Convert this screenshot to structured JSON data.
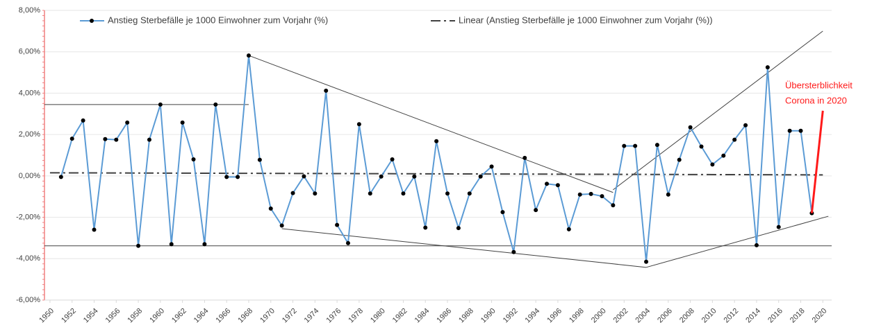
{
  "chart_data": {
    "type": "line",
    "x": [
      1951,
      1952,
      1953,
      1954,
      1955,
      1956,
      1957,
      1958,
      1959,
      1960,
      1961,
      1962,
      1963,
      1964,
      1965,
      1966,
      1967,
      1968,
      1969,
      1970,
      1971,
      1972,
      1973,
      1974,
      1975,
      1976,
      1977,
      1978,
      1979,
      1980,
      1981,
      1982,
      1983,
      1984,
      1985,
      1986,
      1987,
      1988,
      1989,
      1990,
      1991,
      1992,
      1993,
      1994,
      1995,
      1996,
      1997,
      1998,
      1999,
      2000,
      2001,
      2002,
      2003,
      2004,
      2005,
      2006,
      2007,
      2008,
      2009,
      2010,
      2011,
      2012,
      2013,
      2014,
      2015,
      2016,
      2017,
      2018,
      2019
    ],
    "series": [
      {
        "name": "Anstieg Sterbefälle je 1000 Einwohner zum Vorjahr (%)",
        "color": "#5b9bd5",
        "marker": "#000000",
        "values": [
          -0.05,
          1.8,
          2.68,
          -2.6,
          1.78,
          1.75,
          2.58,
          -3.38,
          1.75,
          3.45,
          -3.3,
          2.58,
          0.8,
          -3.3,
          3.45,
          -0.05,
          -0.05,
          5.82,
          0.78,
          -1.58,
          -2.4,
          -0.83,
          -0.02,
          -0.85,
          4.12,
          -2.37,
          -3.25,
          2.5,
          -0.85,
          -0.03,
          0.8,
          -0.85,
          -0.03,
          -2.5,
          1.68,
          -0.85,
          -2.52,
          -0.85,
          -0.03,
          0.45,
          -1.75,
          -3.68,
          0.87,
          -1.65,
          -0.38,
          -0.45,
          -2.58,
          -0.9,
          -0.87,
          -0.98,
          -1.42,
          1.45,
          1.45,
          -4.15,
          1.5,
          -0.9,
          0.78,
          2.35,
          1.42,
          0.55,
          0.98,
          1.75,
          2.45,
          -3.35,
          5.25,
          -2.47,
          2.18,
          2.18,
          -1.8
        ]
      }
    ],
    "trend": {
      "name": "Linear (Anstieg Sterbefälle je 1000 Einwohner zum Vorjahr (%))",
      "color": "#404040",
      "x": [
        1950,
        2020
      ],
      "values": [
        0.15,
        0.05
      ]
    },
    "highlight": {
      "color": "#ff1a1a",
      "x": [
        2019,
        2020
      ],
      "values": [
        -1.8,
        3.15
      ]
    },
    "annotation": [
      "Übersterblichkeit",
      "Corona in 2020"
    ],
    "guide_lines": [
      {
        "x": [
          1949.5,
          1968
        ],
        "values": [
          3.45,
          3.45
        ]
      },
      {
        "x": [
          1968,
          2001
        ],
        "values": [
          5.82,
          -0.8
        ]
      },
      {
        "x": [
          1971,
          2004
        ],
        "values": [
          -2.55,
          -4.42
        ]
      },
      {
        "x": [
          1949.5,
          2020.8
        ],
        "values": [
          -3.38,
          -3.38
        ]
      },
      {
        "x": [
          2001,
          2020
        ],
        "values": [
          -0.67,
          7.0
        ]
      },
      {
        "x": [
          2004,
          2020.5
        ],
        "values": [
          -4.42,
          -1.95
        ]
      }
    ],
    "xlim": [
      1949.5,
      2020.8
    ],
    "xticks": [
      1950,
      1952,
      1954,
      1956,
      1958,
      1960,
      1962,
      1964,
      1966,
      1968,
      1970,
      1972,
      1974,
      1976,
      1978,
      1980,
      1982,
      1984,
      1986,
      1988,
      1990,
      1992,
      1994,
      1996,
      1998,
      2000,
      2002,
      2004,
      2006,
      2008,
      2010,
      2012,
      2014,
      2016,
      2018,
      2020
    ],
    "ylim": [
      -6,
      8
    ],
    "yticks": [
      {
        "value": -6,
        "label": "-6,00%"
      },
      {
        "value": -4,
        "label": "-4,00%"
      },
      {
        "value": -2,
        "label": "-2,00%"
      },
      {
        "value": 0,
        "label": "0,00%"
      },
      {
        "value": 2,
        "label": "2,00%"
      },
      {
        "value": 4,
        "label": "4,00%"
      },
      {
        "value": 6,
        "label": "6,00%"
      },
      {
        "value": 8,
        "label": "8,00%"
      }
    ],
    "grid": true,
    "axis_color": "#f08080"
  }
}
